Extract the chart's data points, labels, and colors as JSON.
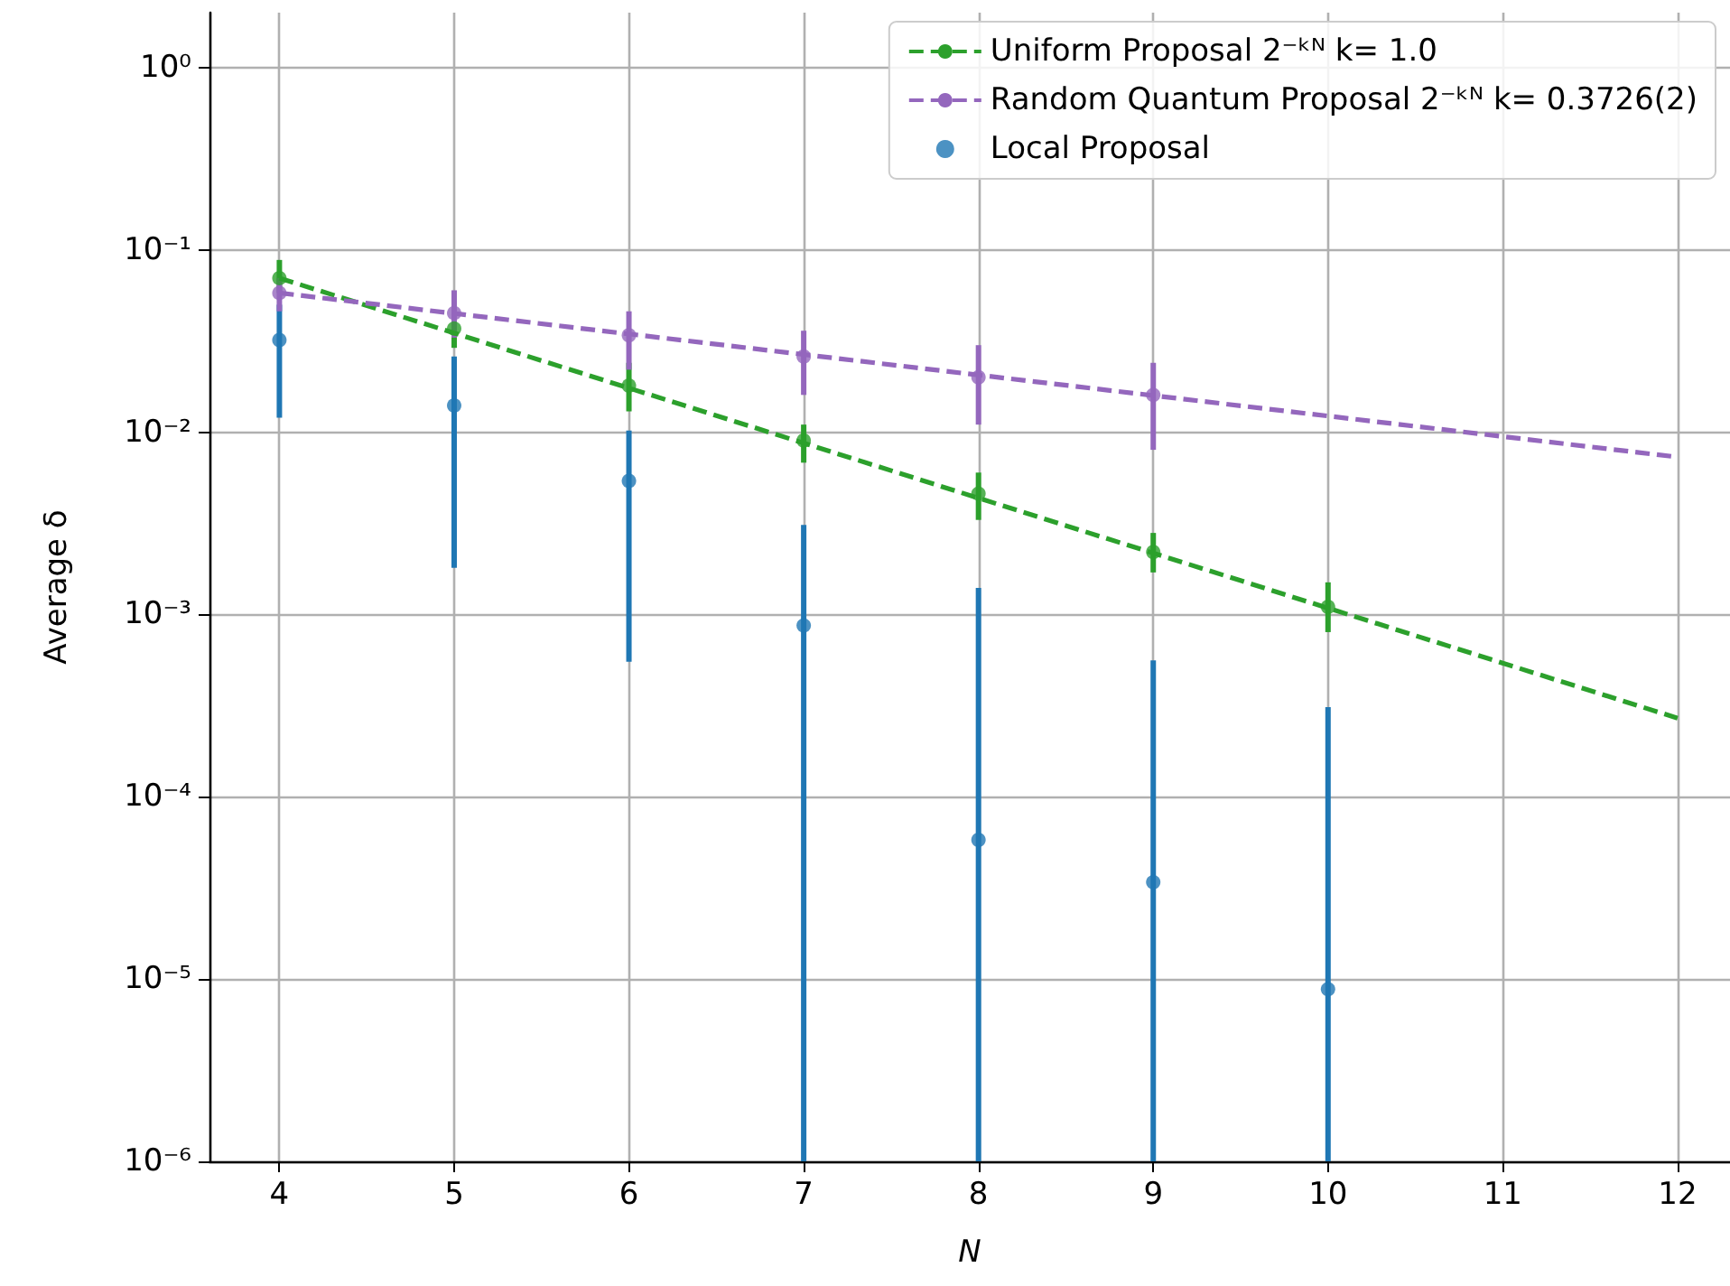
{
  "chart_data": {
    "type": "line",
    "xlabel": "N",
    "ylabel": "Average δ",
    "log": "y",
    "grid": true,
    "legend": "top right",
    "xlim": [
      3.6,
      12.3
    ],
    "xticks": [
      4,
      5,
      6,
      7,
      8,
      9,
      10,
      11,
      12
    ],
    "ylim": [
      1e-06,
      2
    ],
    "yticks": [
      {
        "value": 1e-06,
        "label": "10⁻⁶"
      },
      {
        "value": 1e-05,
        "label": "10⁻⁵"
      },
      {
        "value": 0.0001,
        "label": "10⁻⁴"
      },
      {
        "value": 0.001,
        "label": "10⁻³"
      },
      {
        "value": 0.01,
        "label": "10⁻²"
      },
      {
        "value": 0.1,
        "label": "10⁻¹"
      },
      {
        "value": 1,
        "label": "10⁰"
      }
    ],
    "series": [
      {
        "name": "Uniform Proposal 2⁻ᵏᴺ k= 1.0",
        "type": "line",
        "line_style": "dashed",
        "marker": "none",
        "color": "#2ca02c",
        "x": [
          4,
          12
        ],
        "values": [
          0.07,
          0.00027
        ]
      },
      {
        "name": "Random Quantum Proposal 2⁻ᵏᴺ k= 0.3726(2)",
        "type": "line",
        "line_style": "dashed",
        "marker": "none",
        "color": "#9467bd",
        "x": [
          4,
          12
        ],
        "values": [
          0.058,
          0.0073
        ]
      },
      {
        "name": "Local Proposal",
        "type": "scatter",
        "marker": "circle",
        "color": "#1f77b4",
        "x": [
          4,
          5,
          6,
          7,
          8,
          9,
          10
        ],
        "values": [
          0.032,
          0.014,
          0.0054,
          0.00087,
          5.8e-05,
          3.4e-05,
          8.8e-06
        ],
        "errors": [
          [
            0.012,
            0.05
          ],
          [
            0.0018,
            0.026
          ],
          [
            0.00055,
            0.0102
          ],
          [
            1e-06,
            0.0031
          ],
          [
            1e-06,
            0.0014
          ],
          [
            1e-06,
            0.00056
          ],
          [
            1e-06,
            0.00031
          ]
        ]
      },
      {
        "type": "scatter",
        "marker": "circle",
        "color": "#2ca02c",
        "x": [
          4,
          5,
          6,
          7,
          8,
          9,
          10
        ],
        "values": [
          0.07,
          0.037,
          0.018,
          0.009,
          0.0046,
          0.0022,
          0.0011
        ],
        "errors": [
          [
            0.058,
            0.088
          ],
          [
            0.029,
            0.046
          ],
          [
            0.013,
            0.024
          ],
          [
            0.0068,
            0.011
          ],
          [
            0.0033,
            0.006
          ],
          [
            0.0017,
            0.0028
          ],
          [
            0.0008,
            0.0015
          ]
        ]
      },
      {
        "type": "scatter",
        "marker": "circle",
        "color": "#9467bd",
        "x": [
          4,
          5,
          6,
          7,
          8,
          9
        ],
        "values": [
          0.058,
          0.045,
          0.034,
          0.026,
          0.02,
          0.016
        ],
        "errors": [
          [
            0.046,
            0.07
          ],
          [
            0.033,
            0.06
          ],
          [
            0.022,
            0.046
          ],
          [
            0.016,
            0.036
          ],
          [
            0.011,
            0.03
          ],
          [
            0.008,
            0.024
          ]
        ]
      }
    ]
  }
}
